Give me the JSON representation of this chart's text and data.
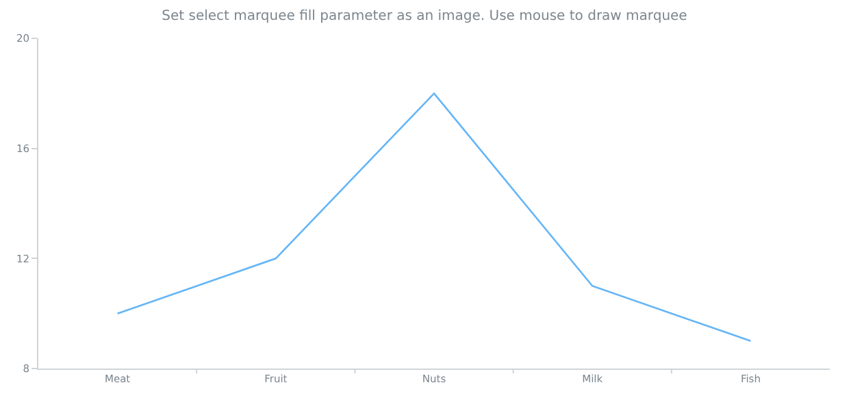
{
  "chart_data": {
    "type": "line",
    "title": "Set select marquee fill parameter as an image. Use mouse to draw marquee",
    "categories": [
      "Meat",
      "Fruit",
      "Nuts",
      "Milk",
      "Fish"
    ],
    "series": [
      {
        "color": "#64b5f6",
        "values": [
          10,
          12,
          18,
          11,
          9
        ]
      }
    ],
    "ylim": [
      8,
      20
    ],
    "yticks": [
      8,
      12,
      16,
      20
    ],
    "legend": false,
    "marker": "none",
    "line_style": "solid"
  }
}
